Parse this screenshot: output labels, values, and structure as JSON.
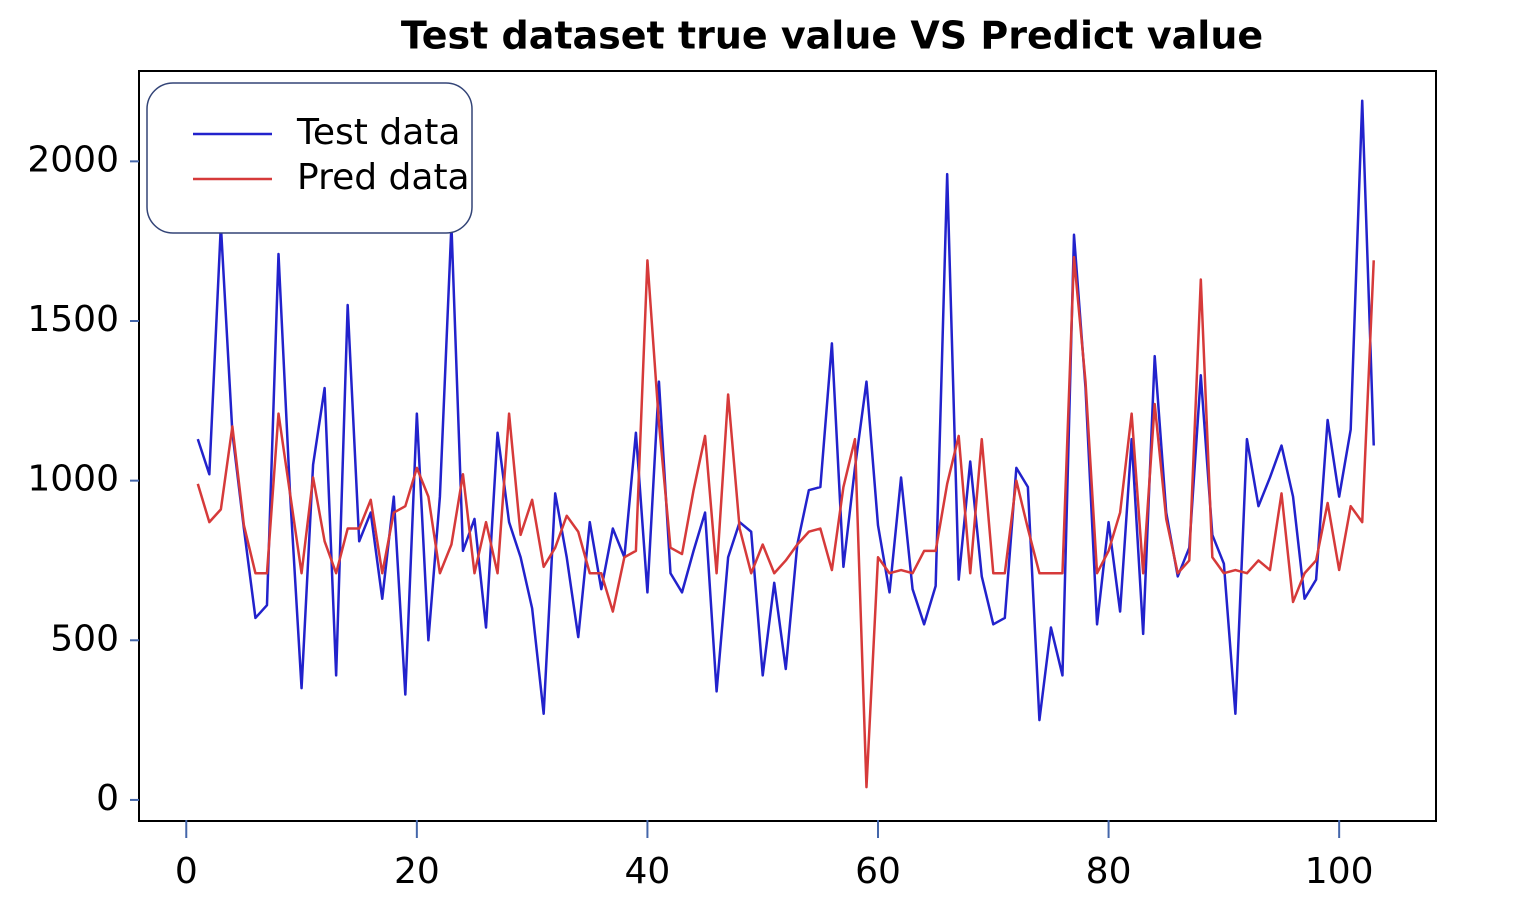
{
  "chart_data": {
    "type": "line",
    "title": "Test dataset true value VS Predict value",
    "x": [
      1,
      2,
      3,
      4,
      5,
      6,
      7,
      8,
      9,
      10,
      11,
      12,
      13,
      14,
      15,
      16,
      17,
      18,
      19,
      20,
      21,
      22,
      23,
      24,
      25,
      26,
      27,
      28,
      29,
      30,
      31,
      32,
      33,
      34,
      35,
      36,
      37,
      38,
      39,
      40,
      41,
      42,
      43,
      44,
      45,
      46,
      47,
      48,
      49,
      50,
      51,
      52,
      53,
      54,
      55,
      56,
      57,
      58,
      59,
      60,
      61,
      62,
      63,
      64,
      65,
      66,
      67,
      68,
      69,
      70,
      71,
      72,
      73,
      74,
      75,
      76,
      77,
      78,
      79,
      80,
      81,
      82,
      83,
      84,
      85,
      86,
      87,
      88,
      89,
      90,
      91,
      92,
      93,
      94,
      95,
      96,
      97,
      98,
      99,
      100,
      101,
      102,
      103
    ],
    "series": [
      {
        "name": "Test data",
        "color": "#2222cc",
        "values": [
          1130,
          1020,
          1800,
          1150,
          850,
          570,
          610,
          1710,
          960,
          350,
          1050,
          1290,
          390,
          1550,
          810,
          900,
          630,
          950,
          330,
          1210,
          500,
          950,
          1800,
          780,
          880,
          540,
          1150,
          870,
          760,
          600,
          270,
          960,
          760,
          510,
          870,
          660,
          850,
          760,
          1150,
          650,
          1310,
          710,
          650,
          780,
          900,
          340,
          760,
          870,
          840,
          390,
          680,
          410,
          800,
          970,
          980,
          1430,
          730,
          1040,
          1310,
          860,
          650,
          1010,
          660,
          550,
          670,
          1960,
          690,
          1060,
          700,
          550,
          570,
          1040,
          980,
          250,
          540,
          390,
          1770,
          1290,
          550,
          870,
          590,
          1130,
          520,
          1390,
          900,
          700,
          790,
          1330,
          830,
          740,
          270,
          1130,
          920,
          1010,
          1110,
          950,
          630,
          690,
          1190,
          950,
          1160,
          2190,
          1110
        ]
      },
      {
        "name": "Pred data",
        "color": "#d63a3a",
        "values": [
          990,
          870,
          910,
          1170,
          860,
          710,
          710,
          1210,
          960,
          710,
          1010,
          810,
          710,
          850,
          850,
          940,
          710,
          900,
          920,
          1040,
          950,
          710,
          800,
          1020,
          710,
          870,
          710,
          1210,
          830,
          940,
          730,
          790,
          890,
          840,
          710,
          710,
          590,
          760,
          780,
          1690,
          1180,
          790,
          770,
          970,
          1140,
          710,
          1270,
          850,
          710,
          800,
          710,
          750,
          800,
          840,
          850,
          720,
          980,
          1130,
          40,
          760,
          710,
          720,
          710,
          780,
          780,
          990,
          1140,
          710,
          1130,
          710,
          710,
          1000,
          850,
          710,
          710,
          710,
          1700,
          1310,
          710,
          780,
          900,
          1210,
          710,
          1240,
          880,
          710,
          750,
          1630,
          760,
          710,
          720,
          710,
          750,
          720,
          960,
          620,
          710,
          750,
          930,
          720,
          920,
          870,
          1690
        ]
      }
    ],
    "xlim": [
      -4.1,
      108.4
    ],
    "ylim": [
      -66,
      2283
    ],
    "xticks": [
      0,
      20,
      40,
      60,
      80,
      100
    ],
    "yticks": [
      0,
      500,
      1000,
      1500,
      2000
    ],
    "grid": false,
    "legend": "upper left"
  }
}
